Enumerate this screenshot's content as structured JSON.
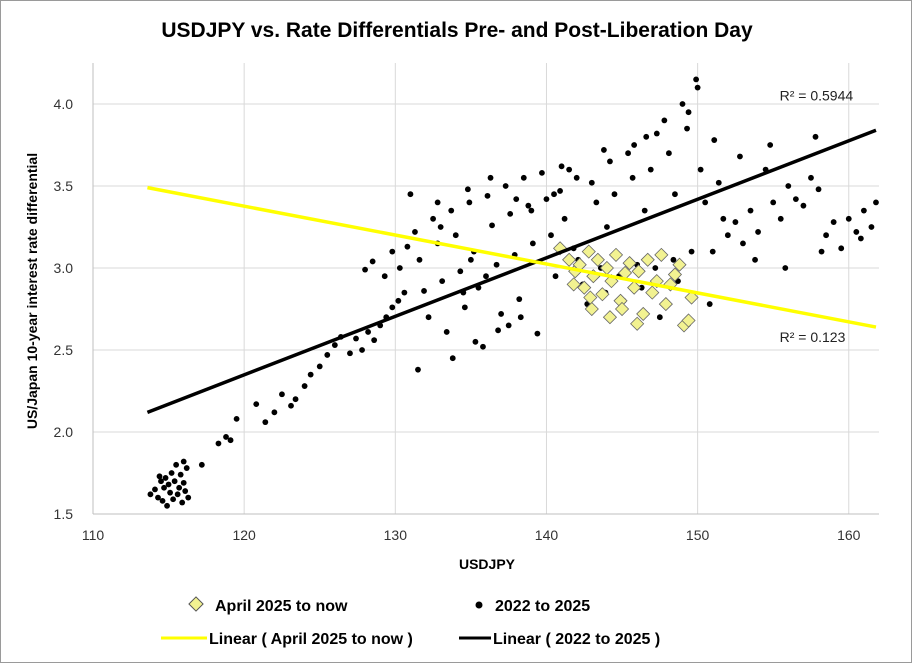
{
  "chart_data": {
    "type": "scatter",
    "title": "USDJPY vs. Rate Differentials Pre- and Post-Liberation Day",
    "xlabel": "USDJPY",
    "ylabel": "US/Japan 10-year interest rate differential",
    "xlim": [
      110,
      162
    ],
    "ylim": [
      1.5,
      4.25
    ],
    "x_ticks": [
      110,
      120,
      130,
      140,
      150,
      160
    ],
    "y_ticks": [
      1.5,
      2.0,
      2.5,
      3.0,
      3.5,
      4.0
    ],
    "x_tick_labels": [
      "110",
      "120",
      "130",
      "140",
      "150",
      "160"
    ],
    "y_tick_labels": [
      "1.5",
      "2.0",
      "2.5",
      "3.0",
      "3.5",
      "4.0"
    ],
    "grid": true,
    "legend_placement": "bottom",
    "series": [
      {
        "name": "2022 to 2025",
        "marker": "circle",
        "color": "#000000",
        "points": [
          [
            113.8,
            1.62
          ],
          [
            114.1,
            1.65
          ],
          [
            114.3,
            1.6
          ],
          [
            114.5,
            1.7
          ],
          [
            114.6,
            1.58
          ],
          [
            114.7,
            1.66
          ],
          [
            114.8,
            1.72
          ],
          [
            114.9,
            1.55
          ],
          [
            115.0,
            1.68
          ],
          [
            115.1,
            1.63
          ],
          [
            115.2,
            1.75
          ],
          [
            115.3,
            1.59
          ],
          [
            115.4,
            1.7
          ],
          [
            115.5,
            1.8
          ],
          [
            115.6,
            1.62
          ],
          [
            115.7,
            1.66
          ],
          [
            115.8,
            1.74
          ],
          [
            115.9,
            1.57
          ],
          [
            116.0,
            1.69
          ],
          [
            116.1,
            1.64
          ],
          [
            116.2,
            1.78
          ],
          [
            116.3,
            1.6
          ],
          [
            116.0,
            1.82
          ],
          [
            114.4,
            1.73
          ],
          [
            117.2,
            1.8
          ],
          [
            118.3,
            1.93
          ],
          [
            118.8,
            1.97
          ],
          [
            119.1,
            1.95
          ],
          [
            119.5,
            2.08
          ],
          [
            120.8,
            2.17
          ],
          [
            121.4,
            2.06
          ],
          [
            122.0,
            2.12
          ],
          [
            122.5,
            2.23
          ],
          [
            123.1,
            2.16
          ],
          [
            123.4,
            2.2
          ],
          [
            124.0,
            2.28
          ],
          [
            124.4,
            2.35
          ],
          [
            125.0,
            2.4
          ],
          [
            125.5,
            2.47
          ],
          [
            126.0,
            2.53
          ],
          [
            126.4,
            2.58
          ],
          [
            127.0,
            2.48
          ],
          [
            127.4,
            2.57
          ],
          [
            127.8,
            2.5
          ],
          [
            128.2,
            2.61
          ],
          [
            128.6,
            2.56
          ],
          [
            129.0,
            2.65
          ],
          [
            129.4,
            2.7
          ],
          [
            129.8,
            2.76
          ],
          [
            130.2,
            2.8
          ],
          [
            130.6,
            2.85
          ],
          [
            128.0,
            2.99
          ],
          [
            128.5,
            3.04
          ],
          [
            129.3,
            2.95
          ],
          [
            129.8,
            3.1
          ],
          [
            130.3,
            3.0
          ],
          [
            130.8,
            3.13
          ],
          [
            131.0,
            3.45
          ],
          [
            131.3,
            3.22
          ],
          [
            131.6,
            3.05
          ],
          [
            131.9,
            2.86
          ],
          [
            132.2,
            2.7
          ],
          [
            132.5,
            3.3
          ],
          [
            132.8,
            3.15
          ],
          [
            133.1,
            2.92
          ],
          [
            133.4,
            2.61
          ],
          [
            133.7,
            3.35
          ],
          [
            134.0,
            3.2
          ],
          [
            134.3,
            2.98
          ],
          [
            134.6,
            2.76
          ],
          [
            134.9,
            3.4
          ],
          [
            135.2,
            3.1
          ],
          [
            135.5,
            2.88
          ],
          [
            135.8,
            2.52
          ],
          [
            136.1,
            3.44
          ],
          [
            136.4,
            3.26
          ],
          [
            136.7,
            3.02
          ],
          [
            137.0,
            2.72
          ],
          [
            137.3,
            3.5
          ],
          [
            137.6,
            3.33
          ],
          [
            137.9,
            3.08
          ],
          [
            138.2,
            2.81
          ],
          [
            138.5,
            3.55
          ],
          [
            138.8,
            3.38
          ],
          [
            139.1,
            3.15
          ],
          [
            139.4,
            2.6
          ],
          [
            139.7,
            3.58
          ],
          [
            140.0,
            3.42
          ],
          [
            140.3,
            3.2
          ],
          [
            140.6,
            2.95
          ],
          [
            140.9,
            3.47
          ],
          [
            141.2,
            3.3
          ],
          [
            141.5,
            3.6
          ],
          [
            141.8,
            3.12
          ],
          [
            142.1,
            3.05
          ],
          [
            142.4,
            2.9
          ],
          [
            142.7,
            2.78
          ],
          [
            143.0,
            3.52
          ],
          [
            143.3,
            3.4
          ],
          [
            143.6,
            3.0
          ],
          [
            143.9,
            2.85
          ],
          [
            144.2,
            3.65
          ],
          [
            144.5,
            3.45
          ],
          [
            144.8,
            2.95
          ],
          [
            145.1,
            2.8
          ],
          [
            145.4,
            3.7
          ],
          [
            145.7,
            3.55
          ],
          [
            146.0,
            3.02
          ],
          [
            146.3,
            2.88
          ],
          [
            146.6,
            3.8
          ],
          [
            146.9,
            3.6
          ],
          [
            147.2,
            3.0
          ],
          [
            147.5,
            2.7
          ],
          [
            147.8,
            3.9
          ],
          [
            148.1,
            3.7
          ],
          [
            148.4,
            3.05
          ],
          [
            148.7,
            2.92
          ],
          [
            149.0,
            4.0
          ],
          [
            149.3,
            3.85
          ],
          [
            149.6,
            3.1
          ],
          [
            149.9,
            4.15
          ],
          [
            150.2,
            3.6
          ],
          [
            150.5,
            3.4
          ],
          [
            150.8,
            2.78
          ],
          [
            151.1,
            3.78
          ],
          [
            151.4,
            3.52
          ],
          [
            151.7,
            3.3
          ],
          [
            152.0,
            3.2
          ],
          [
            152.5,
            3.28
          ],
          [
            153.0,
            3.15
          ],
          [
            153.5,
            3.35
          ],
          [
            154.0,
            3.22
          ],
          [
            154.5,
            3.6
          ],
          [
            155.0,
            3.4
          ],
          [
            155.5,
            3.3
          ],
          [
            156.0,
            3.5
          ],
          [
            156.5,
            3.42
          ],
          [
            157.0,
            3.38
          ],
          [
            157.5,
            3.55
          ],
          [
            158.0,
            3.48
          ],
          [
            158.5,
            3.2
          ],
          [
            159.0,
            3.28
          ],
          [
            160.0,
            3.3
          ],
          [
            160.5,
            3.22
          ],
          [
            161.0,
            3.35
          ],
          [
            161.5,
            3.25
          ],
          [
            161.8,
            3.4
          ],
          [
            160.8,
            3.18
          ],
          [
            159.5,
            3.12
          ],
          [
            157.8,
            3.8
          ],
          [
            154.8,
            3.75
          ],
          [
            152.8,
            3.68
          ],
          [
            151.0,
            3.1
          ],
          [
            153.8,
            3.05
          ],
          [
            155.8,
            3.0
          ],
          [
            158.2,
            3.1
          ],
          [
            135.0,
            3.05
          ],
          [
            136.0,
            2.95
          ],
          [
            133.0,
            3.25
          ],
          [
            134.5,
            2.85
          ],
          [
            137.5,
            2.65
          ],
          [
            139.0,
            3.35
          ],
          [
            140.5,
            3.45
          ],
          [
            142.0,
            3.55
          ],
          [
            144.0,
            3.25
          ],
          [
            146.5,
            3.35
          ],
          [
            148.5,
            3.45
          ],
          [
            131.5,
            2.38
          ],
          [
            133.8,
            2.45
          ],
          [
            135.3,
            2.55
          ],
          [
            136.8,
            2.62
          ],
          [
            138.3,
            2.7
          ],
          [
            141.0,
            3.62
          ],
          [
            143.8,
            3.72
          ],
          [
            145.8,
            3.75
          ],
          [
            147.3,
            3.82
          ],
          [
            149.4,
            3.95
          ],
          [
            150.0,
            4.1
          ],
          [
            132.8,
            3.4
          ],
          [
            134.8,
            3.48
          ],
          [
            136.3,
            3.55
          ],
          [
            138.0,
            3.42
          ]
        ]
      },
      {
        "name": "April 2025 to now",
        "marker": "diamond",
        "color": "#f2f291",
        "points": [
          [
            140.9,
            3.12
          ],
          [
            141.5,
            3.05
          ],
          [
            141.9,
            2.98
          ],
          [
            142.2,
            3.02
          ],
          [
            142.5,
            2.88
          ],
          [
            142.8,
            3.1
          ],
          [
            143.1,
            2.95
          ],
          [
            143.4,
            3.05
          ],
          [
            143.7,
            2.84
          ],
          [
            144.0,
            3.0
          ],
          [
            144.3,
            2.92
          ],
          [
            144.6,
            3.08
          ],
          [
            144.9,
            2.8
          ],
          [
            145.2,
            2.97
          ],
          [
            145.5,
            3.03
          ],
          [
            145.8,
            2.88
          ],
          [
            146.1,
            2.98
          ],
          [
            146.4,
            2.72
          ],
          [
            146.7,
            3.05
          ],
          [
            147.0,
            2.85
          ],
          [
            147.3,
            2.92
          ],
          [
            147.6,
            3.08
          ],
          [
            147.9,
            2.78
          ],
          [
            148.2,
            2.9
          ],
          [
            148.5,
            2.96
          ],
          [
            148.8,
            3.02
          ],
          [
            149.1,
            2.65
          ],
          [
            149.4,
            2.68
          ],
          [
            149.6,
            2.82
          ],
          [
            143.0,
            2.75
          ],
          [
            144.2,
            2.7
          ],
          [
            146.0,
            2.66
          ],
          [
            141.8,
            2.9
          ],
          [
            142.9,
            2.82
          ],
          [
            145.0,
            2.75
          ]
        ]
      }
    ],
    "trendlines": [
      {
        "label": "Linear ( April 2025 to now )",
        "color": "#ffff00",
        "x": [
          113.6,
          161.8
        ],
        "y": [
          3.49,
          2.64
        ],
        "r_squared_label": "R² = 0.123",
        "label_x": 150,
        "label_y": 2.55
      },
      {
        "label": "Linear ( 2022 to 2025 )",
        "color": "#000000",
        "x": [
          113.6,
          161.8
        ],
        "y": [
          2.12,
          3.84
        ],
        "r_squared_label": "R² = 0.5944",
        "label_x": 150,
        "label_y": 4.02
      }
    ]
  },
  "legend": {
    "row1": [
      {
        "label": "April 2025 to now",
        "marker": "diamond-icon"
      },
      {
        "label": "2022 to 2025",
        "marker": "dot-icon"
      }
    ],
    "row2": [
      {
        "label": "Linear ( April 2025 to now )",
        "marker": "yellow-line-icon"
      },
      {
        "label": "Linear ( 2022 to 2025 )",
        "marker": "black-line-icon"
      }
    ]
  }
}
